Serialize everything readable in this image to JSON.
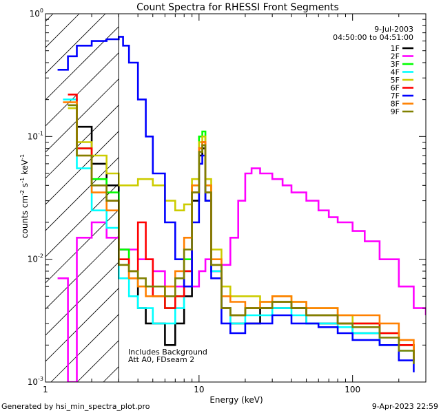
{
  "chart_data": {
    "type": "line",
    "title": "Count Spectra for RHESSI Front Segments",
    "xlabel": "Energy (keV)",
    "ylabel_parts": [
      "counts cm",
      "-2",
      " s",
      "-1",
      " keV",
      "-1"
    ],
    "x_scale": "log",
    "y_scale": "log",
    "xlim": [
      1,
      300
    ],
    "ylim": [
      0.001,
      1
    ],
    "x_tick_labels": [
      {
        "value": 1,
        "label": "1"
      },
      {
        "value": 10,
        "label": "10"
      },
      {
        "value": 100,
        "label": "100"
      }
    ],
    "y_tick_labels": [
      {
        "value": 1,
        "base": "10",
        "exp": "0"
      },
      {
        "value": 0.1,
        "base": "10",
        "exp": "-1"
      },
      {
        "value": 0.01,
        "base": "10",
        "exp": "-2"
      },
      {
        "value": 0.001,
        "base": "10",
        "exp": "-3"
      }
    ],
    "date": "9-Jul-2003",
    "time_range": "04:50:00 to 04:51:00",
    "annotation_lines": [
      "Includes Background",
      "Att A0, FDseam 2"
    ],
    "footer_left": "Generated by hsi_min_spectra_plot.pro",
    "footer_right": "9-Apr-2023 22:59",
    "hatch_xmax": 3,
    "legend_position": "top-right",
    "series": [
      {
        "name": "1F",
        "color": "#000000",
        "x": [
          1.6,
          2,
          2.5,
          3,
          3.5,
          4,
          4.5,
          5,
          6,
          7,
          8,
          9,
          10,
          10.5,
          11,
          12,
          14,
          16,
          20,
          25,
          30,
          40,
          50,
          60,
          80,
          100,
          150,
          200,
          250
        ],
        "y": [
          0.12,
          0.06,
          0.04,
          0.012,
          0.007,
          0.004,
          0.003,
          0.003,
          0.002,
          0.003,
          0.005,
          0.03,
          0.07,
          0.08,
          0.03,
          0.008,
          0.004,
          0.003,
          0.003,
          0.004,
          0.004,
          0.004,
          0.003,
          0.003,
          0.003,
          0.0025,
          0.002,
          0.002,
          0.0015
        ]
      },
      {
        "name": "2F",
        "color": "#ff00ff",
        "x": [
          1.2,
          1.4,
          1.6,
          2,
          2.5,
          3,
          4,
          5,
          6,
          8,
          10,
          11,
          12,
          14,
          16,
          18,
          20,
          22,
          25,
          30,
          35,
          40,
          50,
          60,
          70,
          80,
          100,
          120,
          150,
          200,
          250,
          300
        ],
        "y": [
          0.007,
          0.001,
          0.015,
          0.02,
          0.015,
          0.012,
          0.01,
          0.008,
          0.006,
          0.006,
          0.008,
          0.01,
          0.008,
          0.009,
          0.015,
          0.03,
          0.05,
          0.055,
          0.05,
          0.045,
          0.04,
          0.035,
          0.03,
          0.025,
          0.022,
          0.02,
          0.017,
          0.014,
          0.01,
          0.006,
          0.004,
          0.0035
        ]
      },
      {
        "name": "3F",
        "color": "#00ff00",
        "x": [
          1.4,
          1.6,
          2,
          2.5,
          3,
          3.5,
          4,
          5,
          6,
          7,
          8,
          9,
          10,
          10.5,
          11,
          12,
          14,
          16,
          20,
          25,
          30,
          40,
          50,
          60,
          80,
          100,
          150,
          200,
          250
        ],
        "y": [
          0.18,
          0.08,
          0.045,
          0.035,
          0.012,
          0.008,
          0.006,
          0.005,
          0.004,
          0.005,
          0.01,
          0.04,
          0.1,
          0.11,
          0.04,
          0.009,
          0.004,
          0.0035,
          0.004,
          0.004,
          0.0045,
          0.004,
          0.0035,
          0.0035,
          0.003,
          0.003,
          0.0025,
          0.002,
          0.0015
        ]
      },
      {
        "name": "4F",
        "color": "#00ffff",
        "x": [
          1.3,
          1.6,
          2,
          2.5,
          3,
          3.5,
          4,
          5,
          6,
          7,
          8,
          9,
          10,
          10.5,
          11,
          12,
          14,
          16,
          20,
          25,
          30,
          40,
          50,
          60,
          80,
          100,
          150,
          200,
          250
        ],
        "y": [
          0.2,
          0.055,
          0.025,
          0.018,
          0.007,
          0.005,
          0.004,
          0.003,
          0.003,
          0.004,
          0.008,
          0.035,
          0.08,
          0.09,
          0.035,
          0.008,
          0.004,
          0.003,
          0.0035,
          0.0035,
          0.004,
          0.0035,
          0.003,
          0.003,
          0.0028,
          0.0025,
          0.002,
          0.0018,
          0.0014
        ]
      },
      {
        "name": "5F",
        "color": "#cccc00",
        "x": [
          1.4,
          1.6,
          2,
          2.5,
          3,
          3.5,
          4,
          4.5,
          5,
          6,
          7,
          8,
          9,
          10,
          10.5,
          11,
          12,
          14,
          16,
          20,
          25,
          30,
          40,
          50,
          60,
          80,
          100,
          150,
          200,
          250
        ],
        "y": [
          0.17,
          0.09,
          0.07,
          0.05,
          0.04,
          0.04,
          0.045,
          0.045,
          0.04,
          0.03,
          0.025,
          0.028,
          0.045,
          0.09,
          0.1,
          0.045,
          0.012,
          0.006,
          0.005,
          0.005,
          0.0045,
          0.005,
          0.0045,
          0.004,
          0.004,
          0.0035,
          0.003,
          0.0025,
          0.002,
          0.0015
        ]
      },
      {
        "name": "6F",
        "color": "#ff0000",
        "x": [
          1.4,
          1.6,
          2,
          2.5,
          3,
          3.5,
          4,
          4.5,
          5,
          6,
          7,
          8,
          9,
          10,
          10.5,
          11,
          12,
          14,
          16,
          20,
          25,
          30,
          40,
          50,
          60,
          80,
          100,
          150,
          200,
          250
        ],
        "y": [
          0.22,
          0.08,
          0.04,
          0.03,
          0.01,
          0.008,
          0.02,
          0.01,
          0.005,
          0.004,
          0.005,
          0.008,
          0.035,
          0.08,
          0.09,
          0.035,
          0.009,
          0.004,
          0.0035,
          0.004,
          0.004,
          0.0045,
          0.004,
          0.0035,
          0.0035,
          0.003,
          0.003,
          0.0025,
          0.002,
          0.0015
        ]
      },
      {
        "name": "7F",
        "color": "#0000ff",
        "x": [
          1.2,
          1.4,
          1.6,
          2,
          2.5,
          3,
          3.2,
          3.5,
          4,
          4.5,
          5,
          6,
          7,
          8,
          9,
          10,
          10.5,
          11,
          12,
          14,
          16,
          20,
          25,
          30,
          40,
          50,
          60,
          80,
          100,
          150,
          200,
          250
        ],
        "y": [
          0.35,
          0.45,
          0.55,
          0.6,
          0.62,
          0.65,
          0.55,
          0.4,
          0.2,
          0.1,
          0.05,
          0.02,
          0.01,
          0.006,
          0.02,
          0.06,
          0.07,
          0.03,
          0.007,
          0.003,
          0.0025,
          0.003,
          0.003,
          0.0035,
          0.003,
          0.003,
          0.0028,
          0.0025,
          0.0022,
          0.002,
          0.0015,
          0.0012
        ]
      },
      {
        "name": "8F",
        "color": "#ff8000",
        "x": [
          1.3,
          1.6,
          2,
          2.5,
          3,
          3.5,
          4,
          4.5,
          5,
          6,
          7,
          8,
          9,
          10,
          10.5,
          11,
          12,
          14,
          16,
          20,
          25,
          30,
          40,
          50,
          60,
          80,
          100,
          150,
          200,
          250
        ],
        "y": [
          0.19,
          0.07,
          0.035,
          0.025,
          0.009,
          0.007,
          0.006,
          0.005,
          0.005,
          0.006,
          0.008,
          0.015,
          0.04,
          0.08,
          0.09,
          0.04,
          0.01,
          0.005,
          0.0045,
          0.004,
          0.0045,
          0.005,
          0.0045,
          0.004,
          0.004,
          0.0035,
          0.0035,
          0.003,
          0.0022,
          0.0016
        ]
      },
      {
        "name": "9F",
        "color": "#808000",
        "x": [
          1.4,
          1.6,
          2,
          2.5,
          3,
          3.5,
          4,
          4.5,
          5,
          6,
          7,
          8,
          9,
          10,
          10.5,
          11,
          12,
          14,
          16,
          20,
          25,
          30,
          40,
          50,
          60,
          80,
          100,
          150,
          200,
          250
        ],
        "y": [
          0.18,
          0.07,
          0.04,
          0.03,
          0.009,
          0.008,
          0.007,
          0.006,
          0.006,
          0.005,
          0.007,
          0.012,
          0.035,
          0.075,
          0.085,
          0.035,
          0.009,
          0.004,
          0.0035,
          0.004,
          0.004,
          0.0045,
          0.004,
          0.0035,
          0.0035,
          0.003,
          0.0028,
          0.0023,
          0.0018,
          0.0014
        ]
      }
    ]
  }
}
